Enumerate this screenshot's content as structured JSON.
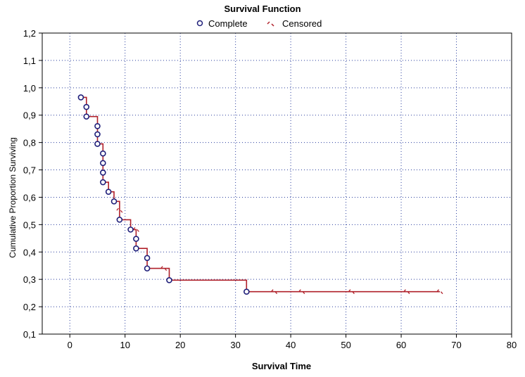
{
  "chart_data": {
    "type": "line",
    "title": "Survival Function",
    "xlabel": "Survival Time",
    "ylabel": "Cumulative Proportion Surviving",
    "xlim": [
      -5,
      80
    ],
    "ylim": [
      0.1,
      1.2
    ],
    "x_ticks": [
      "0",
      "10",
      "20",
      "30",
      "40",
      "50",
      "60",
      "70",
      "80"
    ],
    "y_ticks": [
      "0,1",
      "0,2",
      "0,3",
      "0,4",
      "0,5",
      "0,6",
      "0,7",
      "0,8",
      "0,9",
      "1,0",
      "1,1",
      "1,2"
    ],
    "grid": true,
    "legend_position": "top-center",
    "legend": [
      {
        "name": "Complete",
        "color": "#1f1f7a",
        "marker": "open-circle"
      },
      {
        "name": "Censored",
        "color": "#b0202a",
        "marker": "tick"
      }
    ],
    "step_line": {
      "color": "#b0202a",
      "points": [
        [
          2,
          0.965
        ],
        [
          3,
          0.965
        ],
        [
          3,
          0.93
        ],
        [
          3,
          0.895
        ],
        [
          5,
          0.895
        ],
        [
          5,
          0.86
        ],
        [
          5,
          0.83
        ],
        [
          5,
          0.795
        ],
        [
          6,
          0.795
        ],
        [
          6,
          0.76
        ],
        [
          6,
          0.725
        ],
        [
          6,
          0.69
        ],
        [
          6,
          0.655
        ],
        [
          7,
          0.655
        ],
        [
          7,
          0.62
        ],
        [
          8,
          0.62
        ],
        [
          8,
          0.585
        ],
        [
          9,
          0.585
        ],
        [
          9,
          0.552
        ],
        [
          9,
          0.518
        ],
        [
          11,
          0.518
        ],
        [
          11,
          0.482
        ],
        [
          12,
          0.482
        ],
        [
          12,
          0.448
        ],
        [
          12,
          0.413
        ],
        [
          14,
          0.413
        ],
        [
          14,
          0.378
        ],
        [
          14,
          0.34
        ],
        [
          18,
          0.34
        ],
        [
          18,
          0.297
        ],
        [
          32,
          0.297
        ],
        [
          32,
          0.255
        ],
        [
          67,
          0.255
        ]
      ]
    },
    "complete": [
      {
        "x": 2,
        "y": 0.965
      },
      {
        "x": 3,
        "y": 0.93
      },
      {
        "x": 3,
        "y": 0.895
      },
      {
        "x": 5,
        "y": 0.86
      },
      {
        "x": 5,
        "y": 0.83
      },
      {
        "x": 5,
        "y": 0.795
      },
      {
        "x": 6,
        "y": 0.76
      },
      {
        "x": 6,
        "y": 0.725
      },
      {
        "x": 6,
        "y": 0.69
      },
      {
        "x": 6,
        "y": 0.655
      },
      {
        "x": 7,
        "y": 0.62
      },
      {
        "x": 8,
        "y": 0.585
      },
      {
        "x": 9,
        "y": 0.518
      },
      {
        "x": 11,
        "y": 0.482
      },
      {
        "x": 12,
        "y": 0.448
      },
      {
        "x": 12,
        "y": 0.413
      },
      {
        "x": 14,
        "y": 0.378
      },
      {
        "x": 14,
        "y": 0.34
      },
      {
        "x": 18,
        "y": 0.297
      },
      {
        "x": 32,
        "y": 0.255
      }
    ],
    "censored": [
      {
        "x": 9,
        "y": 0.552
      },
      {
        "x": 12,
        "y": 0.482
      },
      {
        "x": 17,
        "y": 0.34
      },
      {
        "x": 37,
        "y": 0.255
      },
      {
        "x": 42,
        "y": 0.255
      },
      {
        "x": 51,
        "y": 0.255
      },
      {
        "x": 61,
        "y": 0.255
      },
      {
        "x": 67,
        "y": 0.255
      }
    ]
  }
}
